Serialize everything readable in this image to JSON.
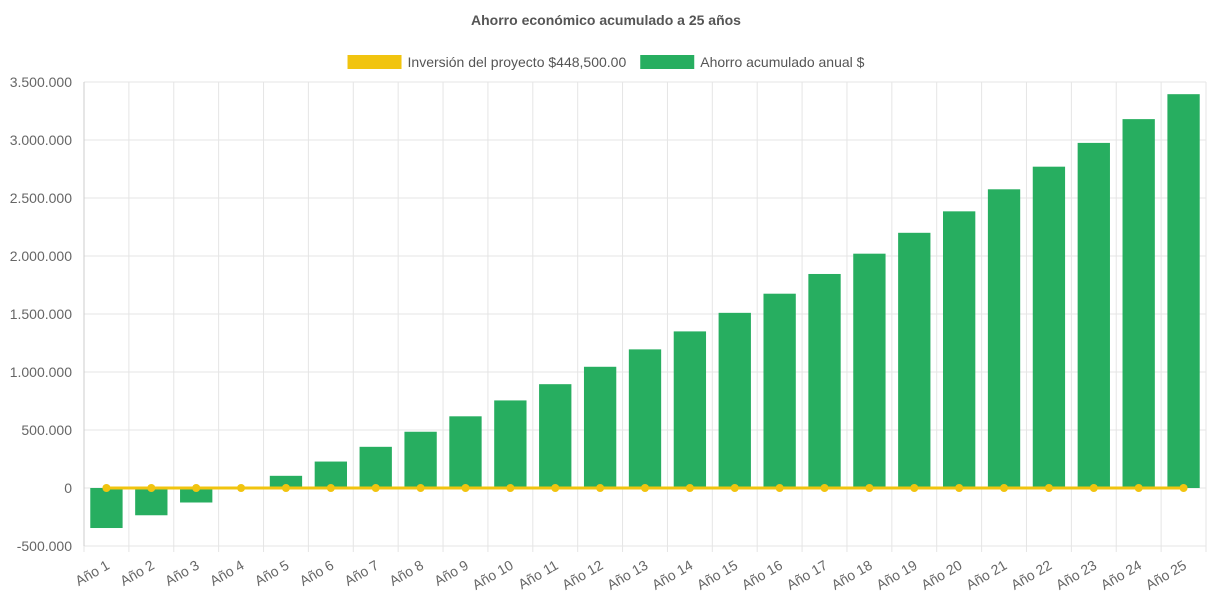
{
  "chart_data": {
    "type": "bar",
    "title": "Ahorro económico acumulado a 25 años",
    "categories": [
      "Año 1",
      "Año 2",
      "Año 3",
      "Año 4",
      "Año 5",
      "Año 6",
      "Año 7",
      "Año 8",
      "Año 9",
      "Año 10",
      "Año 11",
      "Año 12",
      "Año 13",
      "Año 14",
      "Año 15",
      "Año 16",
      "Año 17",
      "Año 18",
      "Año 19",
      "Año 20",
      "Año 21",
      "Año 22",
      "Año 23",
      "Año 24",
      "Año 25"
    ],
    "series": [
      {
        "name": "Inversión del proyecto $448,500.00",
        "type": "line",
        "color": "#f1c40f",
        "values": [
          0,
          0,
          0,
          0,
          0,
          0,
          0,
          0,
          0,
          0,
          0,
          0,
          0,
          0,
          0,
          0,
          0,
          0,
          0,
          0,
          0,
          0,
          0,
          0,
          0
        ]
      },
      {
        "name": "Ahorro acumulado anual $",
        "type": "bar",
        "color": "#27ae60",
        "values": [
          -345000,
          -235000,
          -125000,
          -10000,
          105000,
          228000,
          355000,
          485000,
          618000,
          755000,
          895000,
          1045000,
          1195000,
          1350000,
          1510000,
          1675000,
          1845000,
          2020000,
          2200000,
          2385000,
          2575000,
          2770000,
          2975000,
          3180000,
          3395000
        ]
      }
    ],
    "yticks": [
      "3.500.000",
      "3.000.000",
      "2.500.000",
      "2.000.000",
      "1.500.000",
      "1.000.000",
      "500.000",
      "0",
      "-500.000"
    ],
    "ylim": [
      -500000,
      3500000
    ],
    "grid": true,
    "legend_position": "top"
  }
}
